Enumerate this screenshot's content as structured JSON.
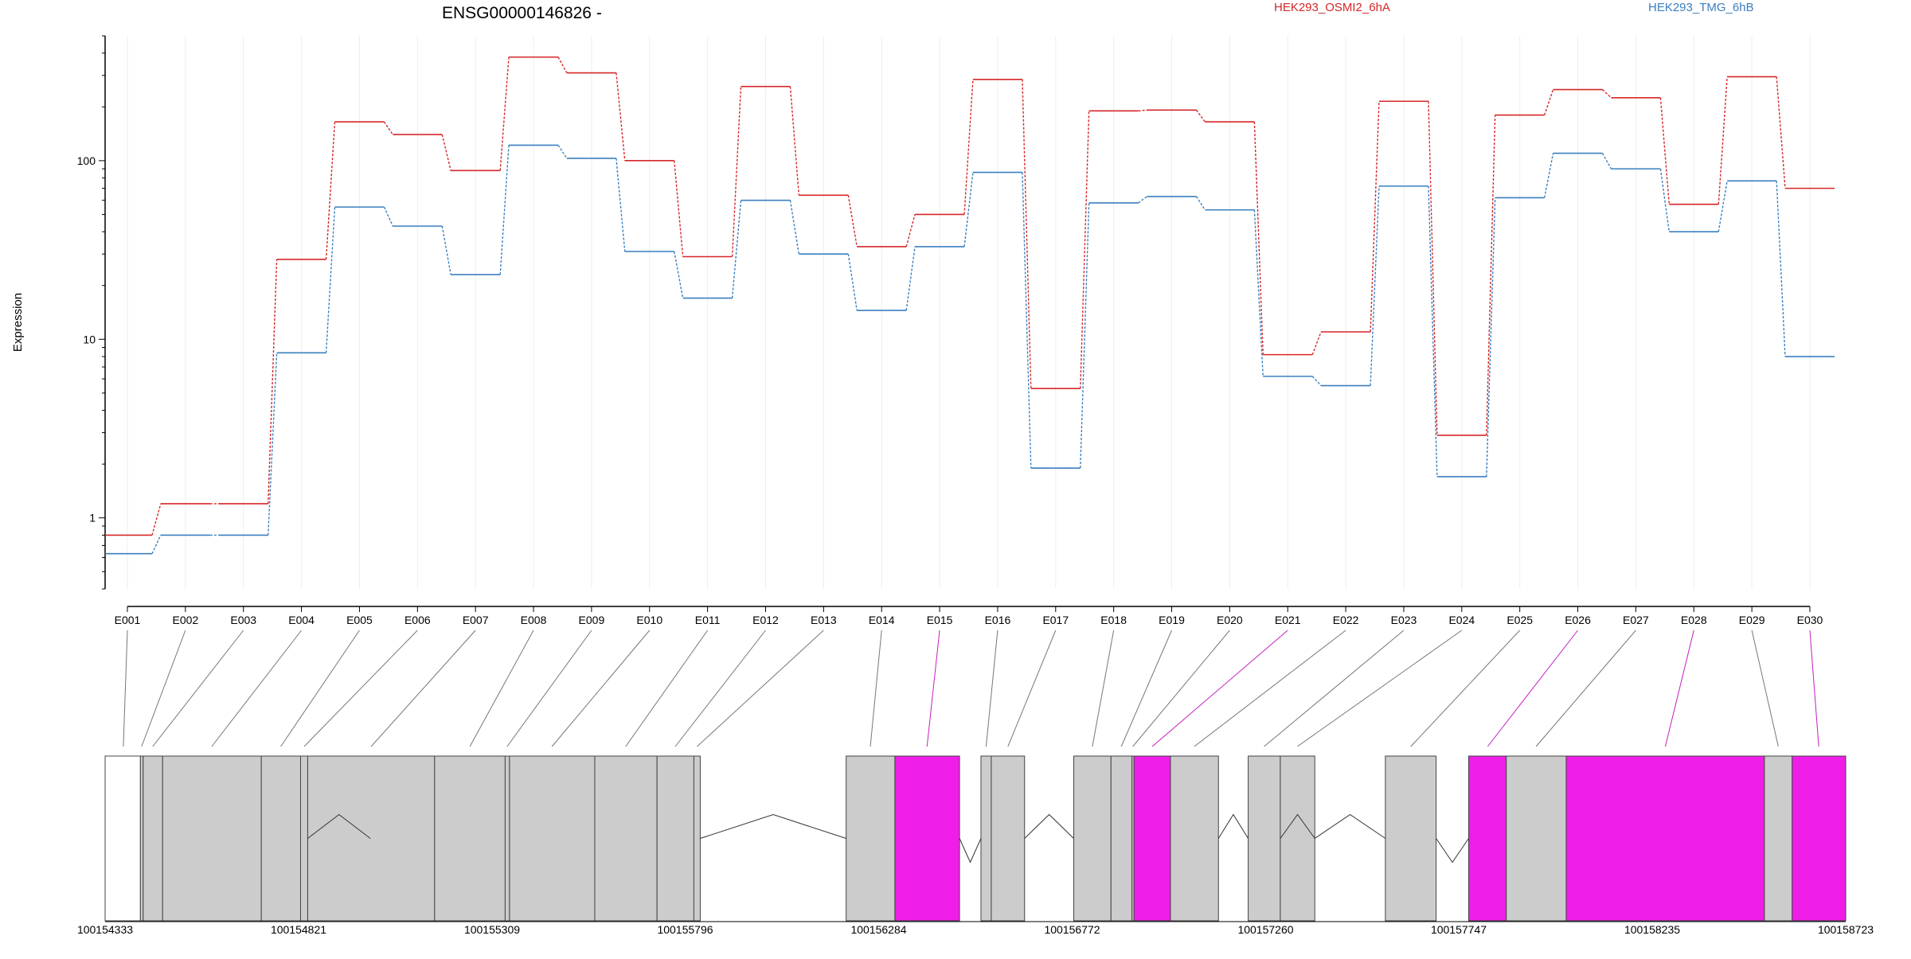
{
  "chart_data": {
    "type": "line",
    "title": "ENSG00000146826 -",
    "ylabel": "Expression",
    "yscale": "log",
    "ylim": [
      0.4,
      500
    ],
    "yticks": [
      1,
      10,
      100
    ],
    "ytick_labels": [
      "1",
      "10",
      "100"
    ],
    "grid": "faint vertical lines at each exon",
    "legend_position": "top-right",
    "categories": [
      "E001",
      "E002",
      "E003",
      "E004",
      "E005",
      "E006",
      "E007",
      "E008",
      "E009",
      "E010",
      "E011",
      "E012",
      "E013",
      "E014",
      "E015",
      "E016",
      "E017",
      "E018",
      "E019",
      "E020",
      "E021",
      "E022",
      "E023",
      "E024",
      "E025",
      "E026",
      "E027",
      "E028",
      "E029",
      "E030"
    ],
    "series": [
      {
        "name": "HEK293_OSMI2_6hA",
        "color": "#d62728",
        "values": [
          0.8,
          1.2,
          1.2,
          28,
          165,
          140,
          88,
          380,
          310,
          100,
          29,
          260,
          64,
          33,
          50,
          285,
          5.3,
          190,
          192,
          165,
          8.2,
          11,
          215,
          2.9,
          180,
          250,
          225,
          57,
          295,
          70
        ]
      },
      {
        "name": "HEK293_TMG_6hB",
        "color": "#3a7fbf",
        "values": [
          0.63,
          0.8,
          0.8,
          8.4,
          55,
          43,
          23,
          122,
          103,
          31,
          17,
          60,
          30,
          14.5,
          33,
          86,
          1.9,
          58,
          63,
          53,
          6.2,
          5.5,
          72,
          1.7,
          62,
          110,
          90,
          40,
          77,
          8
        ]
      }
    ],
    "gene_track": {
      "coordinate_labels": [
        "100154333",
        "100154821",
        "100155309",
        "100155796",
        "100156284",
        "100156772",
        "100157260",
        "100157747",
        "100158235",
        "100158723"
      ],
      "coordinate_range": [
        100154333,
        100158723
      ],
      "exon_colors": {
        "normal": "#cccccc",
        "highlighted": "#ee1ee8",
        "first_exon": "#ffffff"
      },
      "highlighted_exons": [
        "E015",
        "E021",
        "E026",
        "E028",
        "E030"
      ],
      "exon_regions": [
        {
          "id": "E001",
          "start": 100154333,
          "end": 100154422
        },
        {
          "id": "E002",
          "start": 100154422,
          "end": 100154429
        },
        {
          "id": "E003",
          "start": 100154429,
          "end": 100154478
        },
        {
          "id": "E004",
          "start": 100154478,
          "end": 100154727
        },
        {
          "id": "E005",
          "start": 100154727,
          "end": 100154826
        },
        {
          "id": "E006",
          "start": 100154826,
          "end": 100154844
        },
        {
          "id": "E007",
          "start": 100154844,
          "end": 100155164
        },
        {
          "id": "E008",
          "start": 100155164,
          "end": 100155342
        },
        {
          "id": "E009",
          "start": 100155342,
          "end": 100155353
        },
        {
          "id": "E010",
          "start": 100155353,
          "end": 100155568
        },
        {
          "id": "E011",
          "start": 100155568,
          "end": 100155725
        },
        {
          "id": "E012",
          "start": 100155725,
          "end": 100155818
        },
        {
          "id": "E013",
          "start": 100155818,
          "end": 100155834
        },
        {
          "id": "E014",
          "start": 100156202,
          "end": 100156325
        },
        {
          "id": "E015",
          "start": 100156325,
          "end": 100156488
        },
        {
          "id": "E016",
          "start": 100156542,
          "end": 100156568
        },
        {
          "id": "E017",
          "start": 100156568,
          "end": 100156652
        },
        {
          "id": "E018",
          "start": 100156776,
          "end": 100156870
        },
        {
          "id": "E019",
          "start": 100156870,
          "end": 100156923
        },
        {
          "id": "E020",
          "start": 100156923,
          "end": 100156928
        },
        {
          "id": "E021",
          "start": 100156928,
          "end": 100157020
        },
        {
          "id": "E022",
          "start": 100157020,
          "end": 100157141
        },
        {
          "id": "E023",
          "start": 100157216,
          "end": 100157297
        },
        {
          "id": "E024",
          "start": 100157297,
          "end": 100157384
        },
        {
          "id": "E025",
          "start": 100157562,
          "end": 100157690
        },
        {
          "id": "E026",
          "start": 100157772,
          "end": 100157867
        },
        {
          "id": "E027",
          "start": 100157867,
          "end": 100158018
        },
        {
          "id": "E028",
          "start": 100158018,
          "end": 100158518
        },
        {
          "id": "E029",
          "start": 100158518,
          "end": 100158588
        },
        {
          "id": "E030",
          "start": 100158588,
          "end": 100158723
        }
      ],
      "connector_targets": [
        100154379,
        100154425,
        100154453,
        100154602,
        100154776,
        100154835,
        100155004,
        100155253,
        100155347,
        100155460,
        100155646,
        100155771,
        100155826,
        100156263,
        100156406,
        100156555,
        100156610,
        100156823,
        100156896,
        100156925,
        100156974,
        100157080,
        100157256,
        100157340,
        100157626,
        100157820,
        100157942,
        100158268,
        100158553,
        100158655
      ],
      "introns": [
        {
          "start": 100154844,
          "end": 100155002,
          "orientation": "up"
        },
        {
          "start": 100155834,
          "end": 100156202,
          "orientation": "up"
        },
        {
          "start": 100156488,
          "end": 100156542,
          "orientation": "down"
        },
        {
          "start": 100156652,
          "end": 100156776,
          "orientation": "up"
        },
        {
          "start": 100157141,
          "end": 100157216,
          "orientation": "up"
        },
        {
          "start": 100157297,
          "end": 100157384,
          "orientation": "up"
        },
        {
          "start": 100157384,
          "end": 100157562,
          "orientation": "up"
        },
        {
          "start": 100157690,
          "end": 100157772,
          "orientation": "down"
        }
      ]
    }
  }
}
